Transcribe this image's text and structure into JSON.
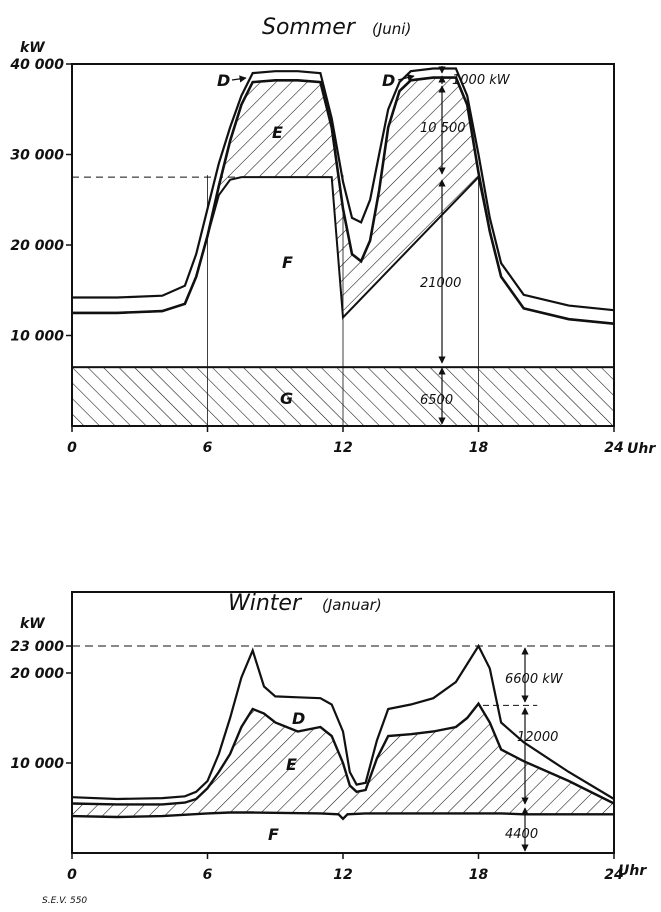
{
  "chart_data": [
    {
      "type": "area",
      "title": "Sommer",
      "subtitle": "(Juni)",
      "unit": "kW",
      "x_unit": "Uhr",
      "xlim": [
        0,
        24
      ],
      "ylim": [
        0,
        40000
      ],
      "x_ticks": [
        "0",
        "6",
        "12",
        "18",
        "24"
      ],
      "y_ticks": [
        {
          "value": 10000,
          "label": "10 000"
        },
        {
          "value": 20000,
          "label": "20 000"
        },
        {
          "value": 30000,
          "label": "30 000"
        },
        {
          "value": 40000,
          "label": "40 000"
        }
      ],
      "series": [
        {
          "name": "D",
          "x": [
            0,
            2,
            4,
            5,
            5.5,
            6,
            6.5,
            7,
            7.5,
            8,
            9,
            10,
            11,
            11.5,
            12,
            12.4,
            12.8,
            13.2,
            13.6,
            14,
            14.5,
            15,
            16,
            17,
            17.5,
            18,
            18.5,
            19,
            20,
            22,
            24
          ],
          "y": [
            14200,
            14200,
            14400,
            15500,
            19000,
            24000,
            29000,
            33000,
            36500,
            39000,
            39200,
            39200,
            39000,
            34000,
            27000,
            23000,
            22500,
            25000,
            30000,
            35000,
            38000,
            39200,
            39500,
            39500,
            36500,
            30000,
            23000,
            18000,
            14500,
            13300,
            12800
          ]
        },
        {
          "name": "E",
          "x": [
            0,
            2,
            4,
            5,
            5.5,
            6,
            6.5,
            7,
            7.5,
            8,
            9,
            10,
            11,
            11.5,
            12,
            12.4,
            12.8,
            13.2,
            13.6,
            14,
            14.5,
            15,
            16,
            17,
            17.5,
            18,
            18.5,
            19,
            20,
            22,
            24
          ],
          "y": [
            12500,
            12500,
            12700,
            13500,
            16500,
            21000,
            26500,
            31500,
            35500,
            38000,
            38200,
            38200,
            38000,
            33000,
            24000,
            19000,
            18200,
            20500,
            26000,
            33000,
            37000,
            38200,
            38500,
            38500,
            35500,
            28000,
            21500,
            16500,
            13000,
            11800,
            11300
          ]
        },
        {
          "name": "F",
          "x": [
            0,
            2,
            4,
            5,
            5.5,
            6,
            6.5,
            7,
            7.5,
            8,
            11.5,
            12,
            18,
            18.5,
            19,
            20,
            22,
            24
          ],
          "y": [
            12500,
            12500,
            12700,
            13500,
            16500,
            21000,
            25500,
            27200,
            27500,
            27500,
            27500,
            12000,
            27500,
            21500,
            16500,
            13000,
            11800,
            11300
          ]
        },
        {
          "name": "G",
          "x": [
            0,
            24
          ],
          "y": [
            6500,
            6500
          ]
        }
      ],
      "annotations": [
        {
          "label": "D",
          "role": "region"
        },
        {
          "label": "E",
          "role": "region"
        },
        {
          "label": "F",
          "role": "region"
        },
        {
          "label": "G",
          "role": "region"
        },
        {
          "label": "1000 kW",
          "value": 1000
        },
        {
          "label": "10 500",
          "value": 10500
        },
        {
          "label": "21000",
          "value": 21000
        },
        {
          "label": "6500",
          "value": 6500
        }
      ],
      "guides": {
        "vertical_x": [
          6,
          12,
          18
        ],
        "dashed_y": 27500
      }
    },
    {
      "type": "area",
      "title": "Winter",
      "subtitle": "(Januar)",
      "unit": "kW",
      "x_unit": "Uhr",
      "xlim": [
        0,
        24
      ],
      "ylim": [
        0,
        23000
      ],
      "x_ticks": [
        "0",
        "6",
        "12",
        "18",
        "24"
      ],
      "y_ticks": [
        {
          "value": 10000,
          "label": "10 000"
        },
        {
          "value": 20000,
          "label": "20 000"
        },
        {
          "value": 23000,
          "label": "23 000"
        }
      ],
      "series": [
        {
          "name": "D",
          "x": [
            0,
            2,
            4,
            5,
            5.5,
            6,
            6.5,
            7,
            7.5,
            8,
            8.5,
            9,
            10,
            11,
            11.5,
            12,
            12.3,
            12.6,
            13,
            13.5,
            14,
            15,
            16,
            17,
            17.5,
            18,
            18.5,
            19,
            20,
            22,
            24
          ],
          "y": [
            6200,
            6000,
            6100,
            6300,
            6800,
            8000,
            11000,
            15000,
            19500,
            22500,
            18500,
            17400,
            17300,
            17200,
            16500,
            13500,
            9000,
            7600,
            7800,
            12500,
            16000,
            16500,
            17200,
            19000,
            21000,
            23000,
            20500,
            14500,
            12300,
            9000,
            6000
          ]
        },
        {
          "name": "E",
          "x": [
            0,
            2,
            4,
            5,
            5.5,
            6,
            6.5,
            7,
            7.5,
            8,
            8.5,
            9,
            10,
            11,
            11.5,
            12,
            12.3,
            12.6,
            13,
            13.5,
            14,
            15,
            16,
            17,
            17.5,
            18,
            18.5,
            19,
            20,
            22,
            24
          ],
          "y": [
            5500,
            5400,
            5400,
            5600,
            6000,
            7200,
            9000,
            11000,
            14000,
            16000,
            15500,
            14500,
            13500,
            14000,
            13000,
            10000,
            7500,
            6800,
            7000,
            10500,
            13000,
            13200,
            13500,
            14000,
            15000,
            16600,
            14500,
            11500,
            10200,
            8000,
            5500
          ]
        },
        {
          "name": "F",
          "x": [
            0,
            2,
            4,
            6,
            7,
            8,
            11,
            11.8,
            12,
            12.2,
            13,
            16,
            18,
            19,
            20,
            22,
            24
          ],
          "y": [
            4100,
            4000,
            4100,
            4400,
            4500,
            4500,
            4400,
            4300,
            3800,
            4300,
            4400,
            4400,
            4400,
            4400,
            4300,
            4300,
            4300
          ]
        }
      ],
      "annotations": [
        {
          "label": "D",
          "role": "region"
        },
        {
          "label": "E",
          "role": "region"
        },
        {
          "label": "F",
          "role": "region"
        },
        {
          "label": "6600 kW",
          "value": 6600
        },
        {
          "label": "12000",
          "value": 12000
        },
        {
          "label": "4400",
          "value": 4400
        }
      ],
      "guides": {
        "dashed_y": [
          23000,
          16400
        ]
      }
    }
  ],
  "footer_code": "S.E.V. 550"
}
